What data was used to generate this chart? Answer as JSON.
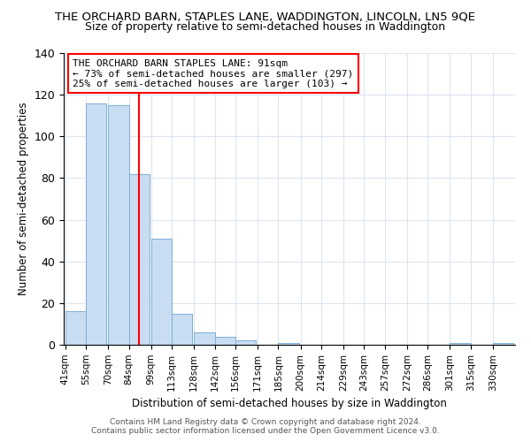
{
  "title": "THE ORCHARD BARN, STAPLES LANE, WADDINGTON, LINCOLN, LN5 9QE",
  "subtitle": "Size of property relative to semi-detached houses in Waddington",
  "xlabel": "Distribution of semi-detached houses by size in Waddington",
  "ylabel": "Number of semi-detached properties",
  "bin_labels": [
    "41sqm",
    "55sqm",
    "70sqm",
    "84sqm",
    "99sqm",
    "113sqm",
    "128sqm",
    "142sqm",
    "156sqm",
    "171sqm",
    "185sqm",
    "200sqm",
    "214sqm",
    "229sqm",
    "243sqm",
    "257sqm",
    "272sqm",
    "286sqm",
    "301sqm",
    "315sqm",
    "330sqm"
  ],
  "bar_values": [
    16,
    116,
    115,
    82,
    51,
    15,
    6,
    4,
    2,
    0,
    1,
    0,
    0,
    0,
    0,
    0,
    0,
    0,
    1,
    0,
    1
  ],
  "bar_color": "#c9ddf2",
  "bar_edge_color": "#7bafd4",
  "vline_color": "red",
  "ylim": [
    0,
    140
  ],
  "yticks": [
    0,
    20,
    40,
    60,
    80,
    100,
    120,
    140
  ],
  "annotation_title": "THE ORCHARD BARN STAPLES LANE: 91sqm",
  "annotation_line1": "← 73% of semi-detached houses are smaller (297)",
  "annotation_line2": "25% of semi-detached houses are larger (103) →",
  "annotation_box_color": "#ffffff",
  "annotation_box_edge": "red",
  "footer1": "Contains HM Land Registry data © Crown copyright and database right 2024.",
  "footer2": "Contains public sector information licensed under the Open Government Licence v3.0.",
  "bin_edges": [
    41,
    55,
    70,
    84,
    99,
    113,
    128,
    142,
    156,
    171,
    185,
    200,
    214,
    229,
    243,
    257,
    272,
    286,
    301,
    315,
    330
  ],
  "bin_width": 14,
  "property_size": 91,
  "grid_color": "#dde5f0",
  "title_fontsize": 9.5,
  "subtitle_fontsize": 9,
  "ylabel_fontsize": 8.5,
  "xlabel_fontsize": 8.5,
  "tick_fontsize": 7.5,
  "annot_fontsize": 8,
  "footer_fontsize": 6.5
}
